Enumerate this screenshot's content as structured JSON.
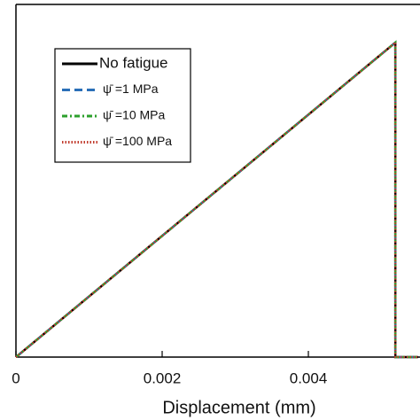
{
  "chart_data": {
    "type": "line",
    "x_label": "Displacement (mm)",
    "xlim": [
      0,
      0.005527
    ],
    "ylim": [
      0,
      1
    ],
    "xticks": [
      0,
      0.002,
      0.004
    ],
    "x": [
      0,
      0.00519,
      0.00519,
      0.0055
    ],
    "series": [
      {
        "name": "No fatigue",
        "color": "#000000",
        "dash": "",
        "values": [
          0,
          0.892,
          0,
          0
        ]
      },
      {
        "name": "ψ̄ =1 MPa",
        "color": "#2a6fb8",
        "dash": "9 5",
        "values": [
          0,
          0.892,
          0,
          0
        ]
      },
      {
        "name": "ψ̄ =10 MPa",
        "color": "#2ca02c",
        "dash": "6 3 2 3",
        "values": [
          0,
          0.892,
          0,
          0
        ]
      },
      {
        "name": "ψ̄ =100 MPa",
        "color": "#c0392b",
        "dash": "1.5 2",
        "values": [
          0,
          0.892,
          0,
          0
        ]
      }
    ]
  }
}
